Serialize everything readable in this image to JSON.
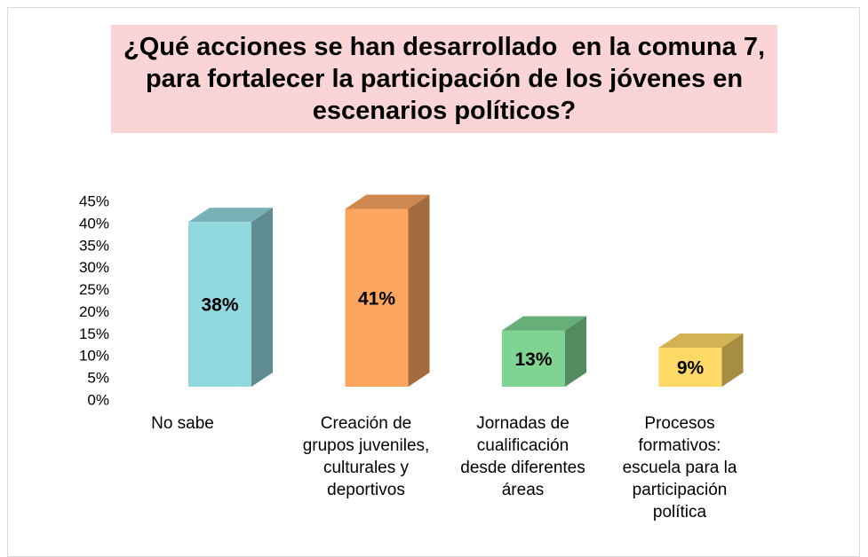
{
  "chart_data": {
    "type": "bar3d",
    "title": "¿Qué acciones se han desarrollado  en la comuna 7, para fortalecer la participación de los jóvenes en escenarios políticos?",
    "categories": [
      "No sabe",
      "Creación de grupos juveniles, culturales y deportivos",
      "Jornadas de cualificación desde diferentes áreas",
      "Procesos formativos: escuela para la participación política"
    ],
    "values": [
      38,
      41,
      13,
      9
    ],
    "value_labels": [
      "38%",
      "41%",
      "13%",
      "9%"
    ],
    "colors": [
      "#92d8df",
      "#fba55f",
      "#7fd492",
      "#ffd966"
    ],
    "ylim": [
      0,
      45
    ],
    "yticks": [
      {
        "value": 0,
        "label": "0%"
      },
      {
        "value": 5,
        "label": "5%"
      },
      {
        "value": 10,
        "label": "10%"
      },
      {
        "value": 15,
        "label": "15%"
      },
      {
        "value": 20,
        "label": "20%"
      },
      {
        "value": 25,
        "label": "25%"
      },
      {
        "value": 30,
        "label": "30%"
      },
      {
        "value": 35,
        "label": "35%"
      },
      {
        "value": 40,
        "label": "40%"
      },
      {
        "value": 45,
        "label": "45%"
      }
    ]
  }
}
